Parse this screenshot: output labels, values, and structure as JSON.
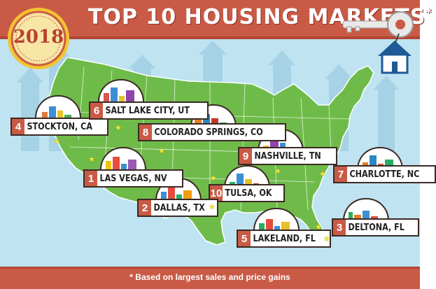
{
  "header": {
    "title": "TOP 10 HOUSING MARKETS",
    "asterisk": "*"
  },
  "badge": {
    "year": "2018"
  },
  "markets": [
    {
      "rank": "1",
      "city": "LAS VEGAS, NV"
    },
    {
      "rank": "2",
      "city": "DALLAS, TX"
    },
    {
      "rank": "3",
      "city": "DELTONA, FL"
    },
    {
      "rank": "4",
      "city": "STOCKTON, CA"
    },
    {
      "rank": "5",
      "city": "LAKELAND, FL"
    },
    {
      "rank": "6",
      "city": "SALT LAKE CITY, UT"
    },
    {
      "rank": "7",
      "city": "CHARLOTTE, NC"
    },
    {
      "rank": "8",
      "city": "COLORADO SPRINGS, CO"
    },
    {
      "rank": "9",
      "city": "NASHVILLE, TN"
    },
    {
      "rank": "10",
      "city": "TULSA, OK"
    }
  ],
  "footer": {
    "note": "* Based on largest sales and price gains"
  },
  "colors": {
    "banner": "#c95b46",
    "map": "#6fbb4a",
    "sky": "#bfe3f1",
    "star": "#f5e83a"
  }
}
